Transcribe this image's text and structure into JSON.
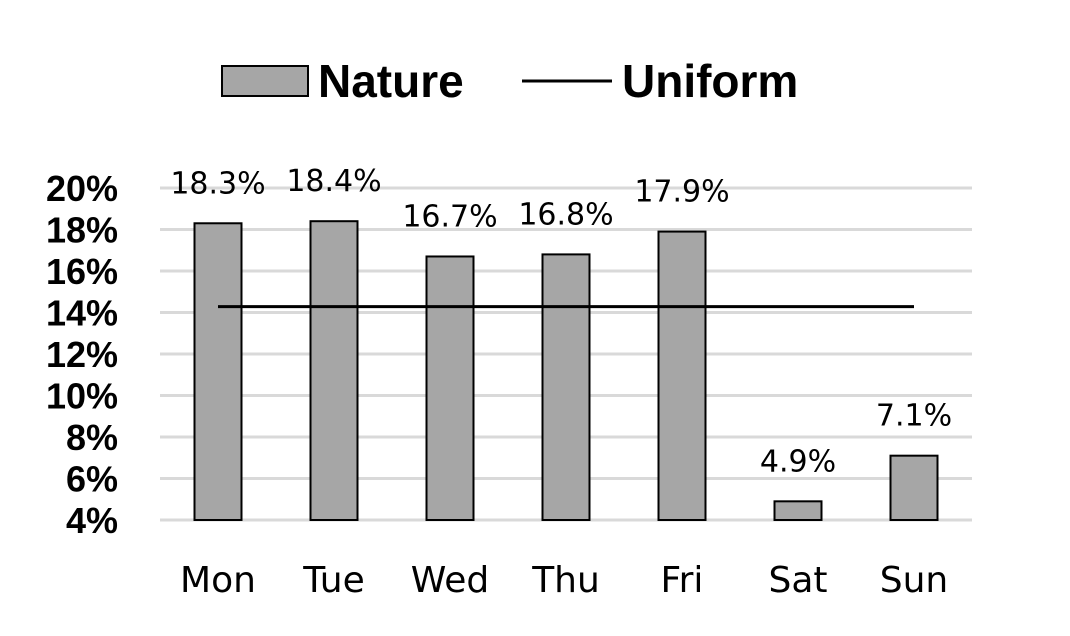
{
  "chart_data": {
    "type": "bar",
    "categories": [
      "Mon",
      "Tue",
      "Wed",
      "Thu",
      "Fri",
      "Sat",
      "Sun"
    ],
    "series": [
      {
        "name": "Nature",
        "values": [
          18.3,
          18.4,
          16.7,
          16.8,
          17.9,
          4.9,
          7.1
        ],
        "color": "#a6a6a6"
      }
    ],
    "data_labels": [
      "18.3%",
      "18.4%",
      "16.7%",
      "16.8%",
      "17.9%",
      "4.9%",
      "7.1%"
    ],
    "reference_line": {
      "name": "Uniform",
      "value": 14.2857,
      "color": "#000000"
    },
    "yticks": [
      "4%",
      "6%",
      "8%",
      "10%",
      "12%",
      "14%",
      "16%",
      "18%",
      "20%"
    ],
    "ylim": [
      4,
      20
    ],
    "grid": true,
    "legend": "top-center",
    "title": "",
    "xlabel": "",
    "ylabel": ""
  }
}
